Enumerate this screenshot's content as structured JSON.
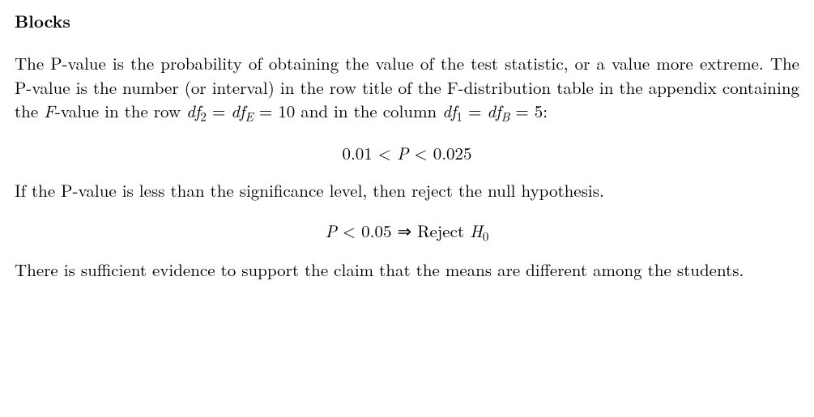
{
  "heading": "Blocks",
  "para1_pre": "The P-value is the probability of obtaining the value of the test statistic, or a value more extreme. The P-value is the number (or interval) in the row title of the F-distribution table in the appendix containing the ",
  "para1_Fvar": "F",
  "para1_mid1": "-value in the row ",
  "df": "df",
  "sub2": "2",
  "eq": " = ",
  "subE": "E",
  "eq10": " = 10",
  "para1_mid2": " and in the column ",
  "sub1": "1",
  "subB": "B",
  "eq5": " = 5",
  "colon": ":",
  "formula1": "0.01 < ",
  "formula1_P": "P",
  "formula1_end": " < 0.025",
  "para2": "If the P-value is less than the significance level, then reject the null hypothesis.",
  "formula2_P": "P",
  "formula2_lt": " < 0.05 ⇒ ",
  "formula2_rej": " Reject ",
  "formula2_H": "H",
  "formula2_Hsub": "0",
  "para3": "There is sufficient evidence to support the claim that the means are different among the students."
}
